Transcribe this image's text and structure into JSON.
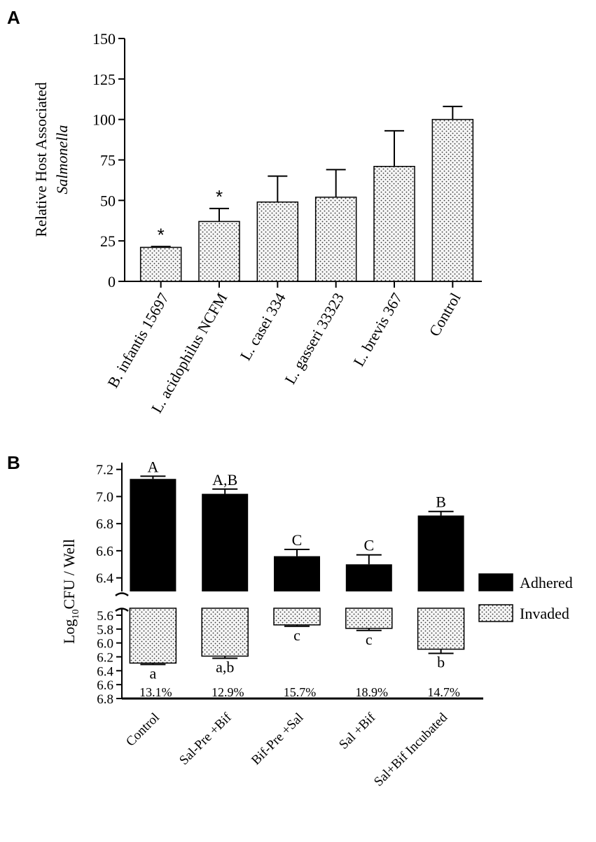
{
  "panel_labels": {
    "a": "A",
    "b": "B"
  },
  "chart_data": [
    {
      "id": "A",
      "type": "bar",
      "categories": [
        "B. infantis 15697",
        "L. acidophilus NCFM",
        "L. casei 334",
        "L. gasseri 33323",
        "L. brevis 367",
        "Control"
      ],
      "values": [
        21,
        37,
        49,
        52,
        71,
        100
      ],
      "errors": [
        0.5,
        8,
        16,
        17,
        22,
        8
      ],
      "annotations": [
        "*",
        "*",
        "",
        "",
        "",
        ""
      ],
      "ylabel_line1": "Relative  Host Associated",
      "ylabel_line2": "Salmonella",
      "ylim": [
        0,
        150
      ],
      "yticks": [
        0,
        25,
        50,
        75,
        100,
        125,
        150
      ],
      "fill_pattern": "dotted"
    },
    {
      "id": "B",
      "type": "bar",
      "categories": [
        "Control",
        "Sal-Pre +Bif",
        "Bif-Pre +Sal",
        "Sal +Bif",
        "Sal+Bif Incubated"
      ],
      "ylabel_prefix": "Log",
      "ylabel_sub": "10",
      "ylabel_suffix": "CFU / Well",
      "series": [
        {
          "name": "Adhered",
          "values": [
            7.13,
            7.02,
            6.56,
            6.5,
            6.86
          ],
          "errors": [
            0.02,
            0.035,
            0.05,
            0.07,
            0.03
          ],
          "letters": [
            "A",
            "A,B",
            "C",
            "C",
            "B"
          ],
          "axis_range": [
            6.3,
            7.25
          ],
          "yticks": [
            6.4,
            6.6,
            6.8,
            7.0,
            7.2
          ],
          "tick_labels": [
            "6.4",
            "6.6",
            "6.8",
            "7.0",
            "7.2"
          ]
        },
        {
          "name": "Invaded",
          "values": [
            6.29,
            6.19,
            5.74,
            5.79,
            6.09
          ],
          "errors": [
            0.02,
            0.03,
            0.02,
            0.03,
            0.06
          ],
          "letters": [
            "a",
            "a,b",
            "c",
            "c",
            "b"
          ],
          "axis_range": [
            5.5,
            6.8
          ],
          "yticks": [
            5.6,
            5.8,
            6.0,
            6.2,
            6.4,
            6.6,
            6.8
          ],
          "tick_labels": [
            "5.6",
            "5.8",
            "6.0",
            "6.2",
            "6.4",
            "6.6",
            "6.8"
          ],
          "inverted": true
        }
      ],
      "percentages": [
        "13.1%",
        "12.9%",
        "15.7%",
        "18.9%",
        "14.7%"
      ],
      "legend": [
        {
          "label": "Adhered",
          "fill": "#000000"
        },
        {
          "label": "Invaded",
          "fill": "dotted"
        }
      ],
      "legend_position": "right"
    }
  ]
}
